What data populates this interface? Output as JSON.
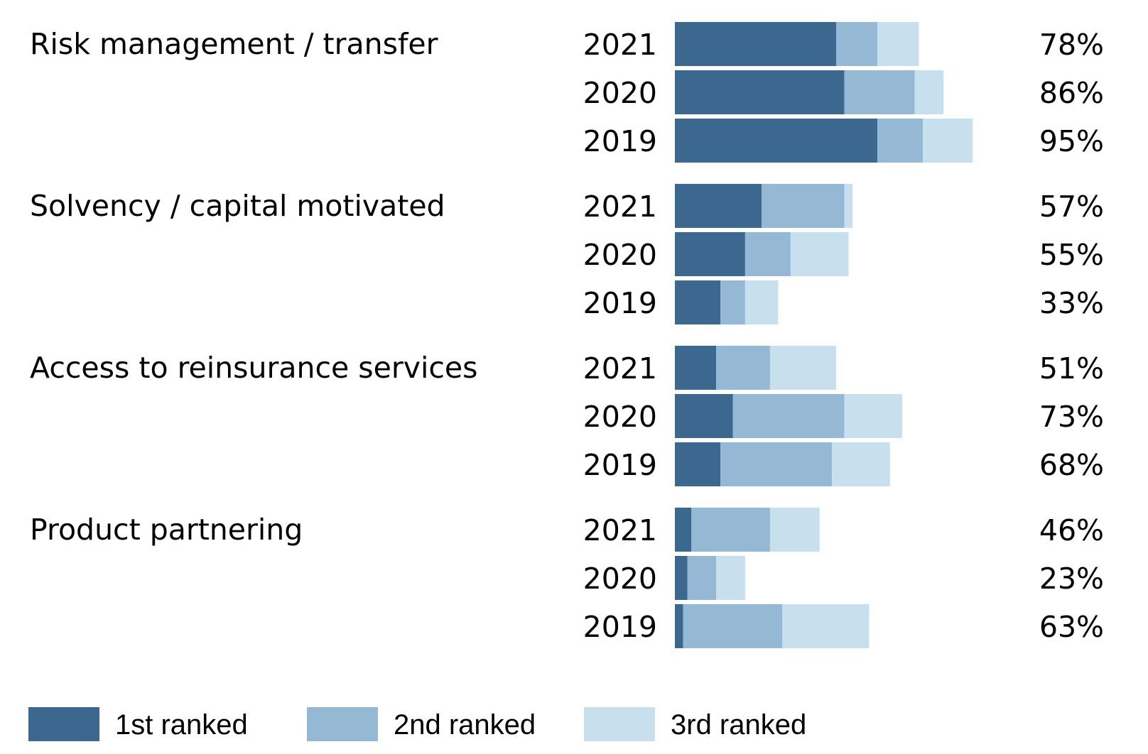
{
  "chart_data": {
    "type": "bar",
    "orientation": "horizontal",
    "stacked": true,
    "categories": [
      {
        "name": "Risk management / transfer",
        "rows": [
          {
            "year": "2021",
            "values": [
              39,
              10,
              10
            ],
            "total": "78%"
          },
          {
            "year": "2020",
            "values": [
              41,
              17,
              7
            ],
            "total": "86%"
          },
          {
            "year": "2019",
            "values": [
              49,
              11,
              12
            ],
            "total": "95%"
          }
        ]
      },
      {
        "name": "Solvency / capital motivated",
        "rows": [
          {
            "year": "2021",
            "values": [
              21,
              20,
              2
            ],
            "total": "57%"
          },
          {
            "year": "2020",
            "values": [
              17,
              11,
              14
            ],
            "total": "55%"
          },
          {
            "year": "2019",
            "values": [
              11,
              6,
              8
            ],
            "total": "33%"
          }
        ]
      },
      {
        "name": "Access to reinsurance services",
        "rows": [
          {
            "year": "2021",
            "values": [
              10,
              13,
              16
            ],
            "total": "51%"
          },
          {
            "year": "2020",
            "values": [
              14,
              27,
              14
            ],
            "total": "73%"
          },
          {
            "year": "2019",
            "values": [
              11,
              27,
              14
            ],
            "total": "68%"
          }
        ]
      },
      {
        "name": "Product partnering",
        "rows": [
          {
            "year": "2021",
            "values": [
              4,
              19,
              12
            ],
            "total": "46%"
          },
          {
            "year": "2020",
            "values": [
              3,
              7,
              7
            ],
            "total": "23%"
          },
          {
            "year": "2019",
            "values": [
              2,
              24,
              21
            ],
            "total": "63%"
          }
        ]
      }
    ],
    "series": [
      {
        "name": "1st ranked",
        "color": "#3c6890"
      },
      {
        "name": "2nd ranked",
        "color": "#95b9d4"
      },
      {
        "name": "3rd ranked",
        "color": "#c8dfee"
      }
    ],
    "xlim": [
      0,
      75
    ],
    "grid": false,
    "legend": "bottom"
  }
}
